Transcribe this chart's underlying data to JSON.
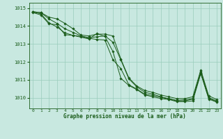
{
  "background_color": "#c8e8e0",
  "grid_color": "#99ccbb",
  "line_color": "#1a5c1a",
  "title": "Graphe pression niveau de la mer (hPa)",
  "xlim": [
    -0.5,
    23.5
  ],
  "ylim": [
    1009.4,
    1015.3
  ],
  "yticks": [
    1010,
    1011,
    1012,
    1013,
    1014,
    1015
  ],
  "xticks": [
    0,
    1,
    2,
    3,
    4,
    5,
    6,
    7,
    8,
    9,
    10,
    11,
    12,
    13,
    14,
    15,
    16,
    17,
    18,
    19,
    20,
    21,
    22,
    23
  ],
  "series": [
    [
      1014.8,
      1014.75,
      1014.5,
      1014.4,
      1014.15,
      1013.85,
      1013.5,
      1013.45,
      1013.55,
      1013.55,
      1013.45,
      1012.15,
      1011.1,
      1010.65,
      1010.4,
      1010.3,
      1010.15,
      1010.05,
      1009.95,
      1009.95,
      1010.05,
      1011.55,
      1010.1,
      1009.9
    ],
    [
      1014.8,
      1014.75,
      1014.4,
      1014.15,
      1013.85,
      1013.65,
      1013.45,
      1013.35,
      1013.4,
      1013.45,
      1013.1,
      1012.1,
      1011.05,
      1010.6,
      1010.3,
      1010.2,
      1010.05,
      1009.95,
      1009.85,
      1009.88,
      1009.95,
      1011.45,
      1010.0,
      1009.82
    ],
    [
      1014.78,
      1014.68,
      1014.18,
      1013.95,
      1013.62,
      1013.48,
      1013.42,
      1013.32,
      1013.25,
      1013.22,
      1012.12,
      1011.62,
      1010.72,
      1010.48,
      1010.2,
      1010.12,
      1010.02,
      1009.92,
      1009.82,
      1009.82,
      1009.92,
      1011.38,
      1009.96,
      1009.78
    ],
    [
      1014.75,
      1014.62,
      1014.12,
      1014.08,
      1013.52,
      1013.48,
      1013.38,
      1013.28,
      1013.58,
      1013.42,
      1012.58,
      1011.08,
      1010.68,
      1010.45,
      1010.15,
      1010.05,
      1009.95,
      1009.9,
      1009.78,
      1009.78,
      1009.82,
      1011.35,
      1009.92,
      1009.75
    ]
  ]
}
